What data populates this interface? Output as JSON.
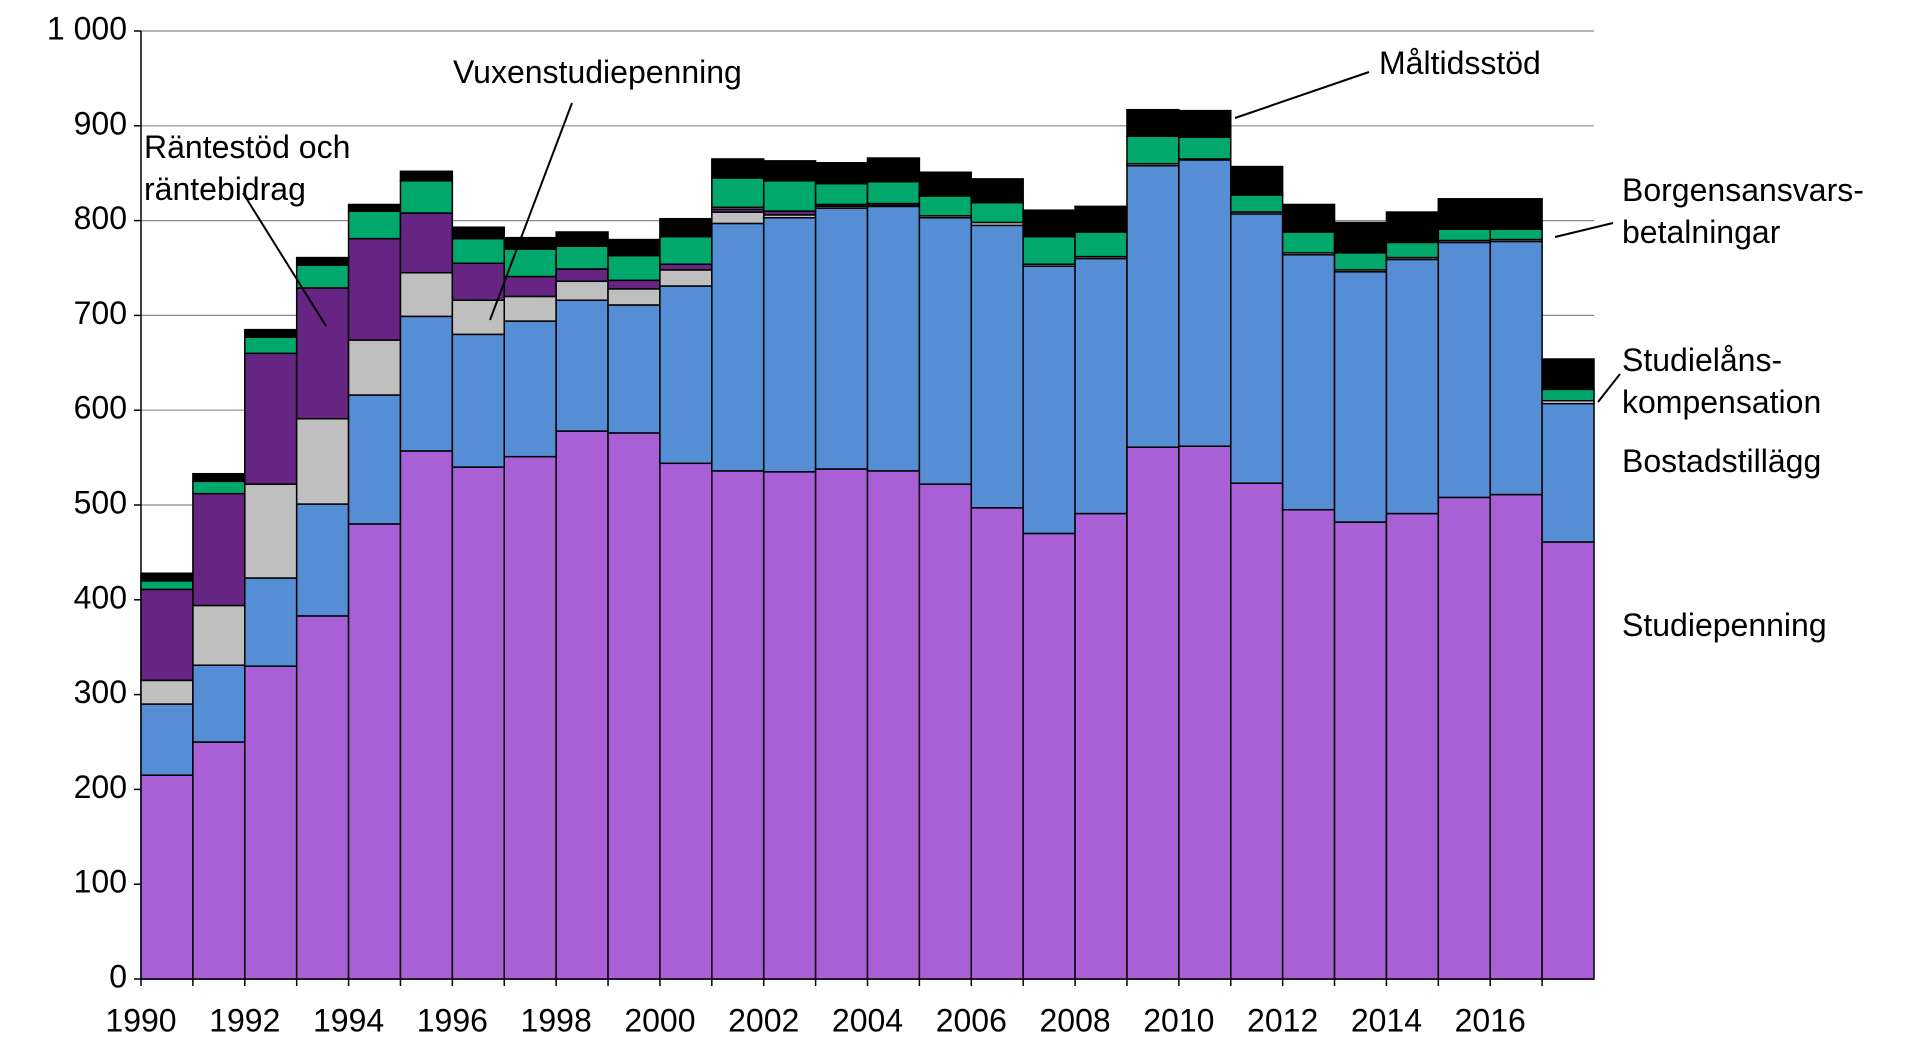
{
  "chart_data": {
    "type": "stacked_bar",
    "categories": [
      "1990",
      null,
      "1992",
      null,
      "1994",
      null,
      "1996",
      null,
      "1998",
      null,
      "2000",
      null,
      "2002",
      null,
      "2004",
      null,
      "2006",
      null,
      "2008",
      null,
      "2010",
      null,
      "2012",
      null,
      "2014",
      null,
      "2016",
      null
    ],
    "series": [
      {
        "name": "Studiepenning",
        "color": "#a95fd6",
        "values": [
          215,
          250,
          330,
          383,
          480,
          557,
          540,
          551,
          578,
          576,
          544,
          536,
          535,
          538,
          536,
          522,
          497,
          470,
          491,
          561,
          562,
          523,
          495,
          482,
          491,
          508,
          511,
          461
        ]
      },
      {
        "name": "Bostadstillägg",
        "color": "#558ed5",
        "values": [
          75,
          81,
          93,
          118,
          136,
          142,
          140,
          143,
          138,
          135,
          187,
          261,
          268,
          275,
          279,
          281,
          298,
          282,
          269,
          297,
          302,
          284,
          269,
          264,
          268,
          269,
          267,
          146
        ]
      },
      {
        "name": "Vuxenstudiepenning",
        "color": "#bfbfbf",
        "values": [
          25,
          63,
          99,
          90,
          58,
          46,
          36,
          26,
          20,
          17,
          17,
          12,
          3,
          2,
          1,
          0,
          0,
          0,
          0,
          0,
          0,
          0,
          0,
          0,
          0,
          0,
          0,
          0
        ]
      },
      {
        "name": "Räntestöd och räntebidrag",
        "color": "#662483",
        "values": [
          96,
          118,
          138,
          138,
          107,
          63,
          39,
          21,
          13,
          9,
          6,
          3,
          4,
          2,
          2,
          0,
          0,
          0,
          0,
          0,
          0,
          0,
          0,
          0,
          0,
          0,
          0,
          0
        ]
      },
      {
        "name": "Studielåns-kompensation",
        "color": "#e8dcf0",
        "values": [
          0,
          0,
          0,
          0,
          0,
          0,
          0,
          0,
          0,
          0,
          0,
          2,
          0,
          0,
          0,
          2,
          3,
          2,
          2,
          2,
          1,
          2,
          2,
          2,
          2,
          2,
          2,
          3
        ]
      },
      {
        "name": "Borgensansvars-betalningar",
        "color": "#00a86b",
        "values": [
          9,
          13,
          17,
          24,
          29,
          34,
          26,
          29,
          24,
          26,
          29,
          31,
          32,
          22,
          23,
          21,
          21,
          29,
          26,
          29,
          23,
          18,
          22,
          18,
          16,
          12,
          11,
          12
        ]
      },
      {
        "name": "Måltidsstöd",
        "color": "#000000",
        "values": [
          8,
          8,
          8,
          8,
          7,
          10,
          12,
          12,
          15,
          17,
          19,
          20,
          21,
          22,
          25,
          25,
          25,
          28,
          27,
          28,
          28,
          30,
          29,
          32,
          32,
          32,
          32,
          32
        ]
      }
    ],
    "ylim": [
      0,
      1000
    ],
    "yticks": [
      0,
      100,
      200,
      300,
      400,
      500,
      600,
      700,
      800,
      900,
      {
        "value": 1000,
        "label": "1 000"
      }
    ],
    "grid": true
  }
}
